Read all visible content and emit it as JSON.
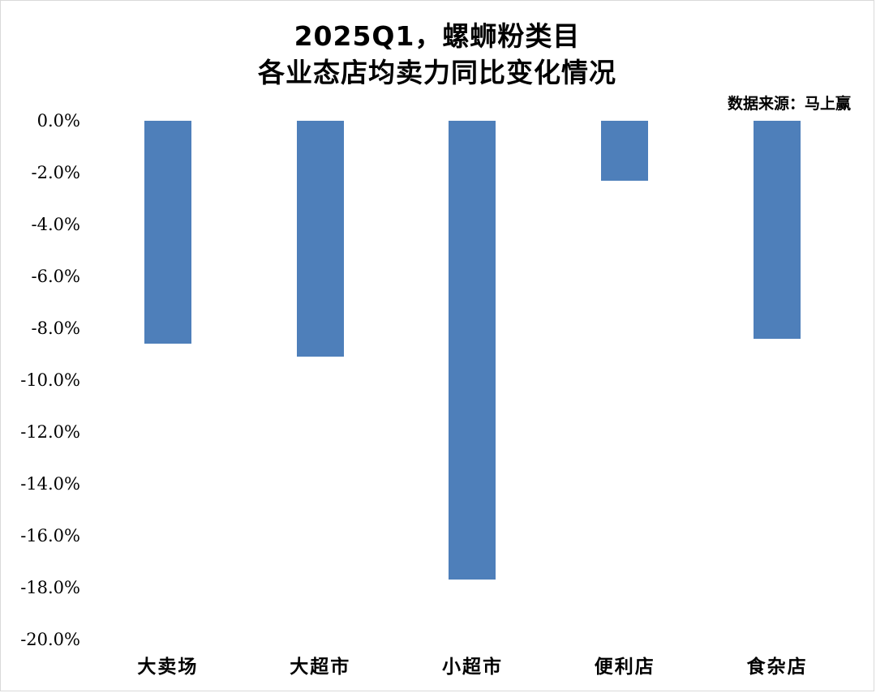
{
  "title": {
    "line1": "2025Q1，螺蛳粉类目",
    "line2": "各业态店均卖力同比变化情况"
  },
  "source": "数据来源：马上赢",
  "chart_data": {
    "type": "bar",
    "title": "2025Q1，螺蛳粉类目 各业态店均卖力同比变化情况",
    "categories": [
      "大卖场",
      "大超市",
      "小超市",
      "便利店",
      "食杂店"
    ],
    "values": [
      -8.6,
      -9.1,
      -17.7,
      -2.3,
      -8.4
    ],
    "xlabel": "",
    "ylabel": "",
    "ylim": [
      -20,
      0
    ],
    "y_ticks": [
      "0.0%",
      "-2.0%",
      "-4.0%",
      "-6.0%",
      "-8.0%",
      "-10.0%",
      "-12.0%",
      "-14.0%",
      "-16.0%",
      "-18.0%",
      "-20.0%"
    ],
    "bar_color": "#4E7FBA",
    "grid": false,
    "legend": false
  }
}
